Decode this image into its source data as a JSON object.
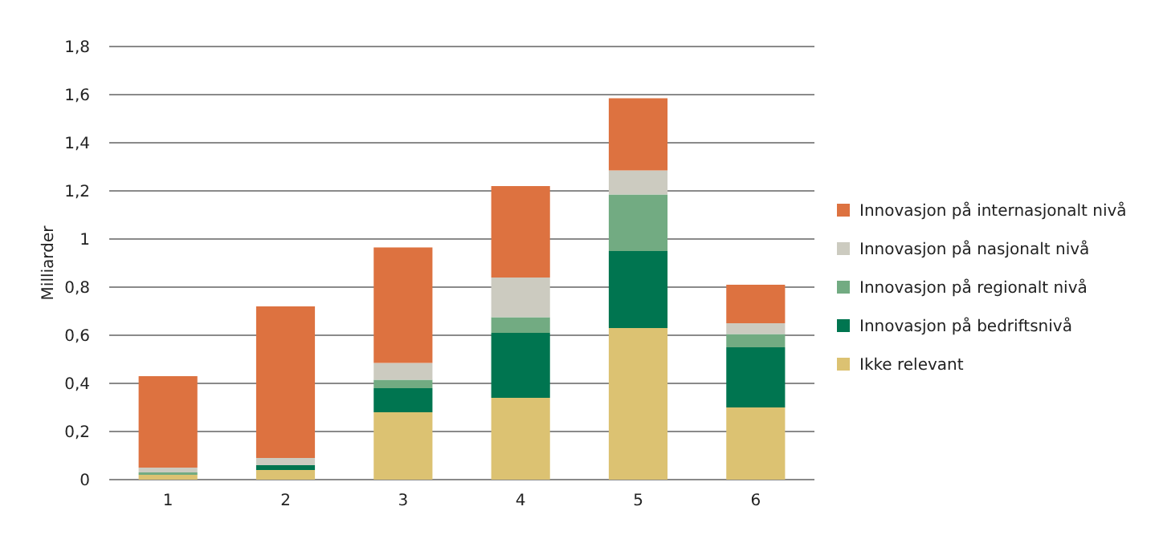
{
  "chart_data": {
    "type": "bar",
    "stacked": true,
    "ylabel": "Milliarder",
    "categories": [
      "1",
      "2",
      "3",
      "4",
      "5",
      "6"
    ],
    "series": [
      {
        "name": "Ikke relevant",
        "color": "#dcc272",
        "values": [
          0.02,
          0.04,
          0.28,
          0.34,
          0.63,
          0.3
        ]
      },
      {
        "name": "Innovasjon på bedriftsnivå",
        "color": "#007550",
        "values": [
          0,
          0.02,
          0.1,
          0.27,
          0.32,
          0.25
        ]
      },
      {
        "name": "Innovasjon på regionalt nivå",
        "color": "#72ab82",
        "values": [
          0.01,
          0,
          0.035,
          0.065,
          0.235,
          0.055
        ]
      },
      {
        "name": "Innovasjon på nasjonalt nivå",
        "color": "#cccbc0",
        "values": [
          0.02,
          0.03,
          0.07,
          0.165,
          0.1,
          0.045
        ]
      },
      {
        "name": "Innovasjon på internasjonalt nivå",
        "color": "#dd7240",
        "values": [
          0.38,
          0.63,
          0.48,
          0.38,
          0.3,
          0.16
        ]
      }
    ],
    "ylim": [
      0,
      1.8
    ],
    "yticks": [
      {
        "value": 0,
        "label": "0"
      },
      {
        "value": 0.2,
        "label": "0,2"
      },
      {
        "value": 0.4,
        "label": "0,4"
      },
      {
        "value": 0.6,
        "label": "0,6"
      },
      {
        "value": 0.8,
        "label": "0,8"
      },
      {
        "value": 1,
        "label": "1"
      },
      {
        "value": 1.2,
        "label": "1,2"
      },
      {
        "value": 1.4,
        "label": "1,4"
      },
      {
        "value": 1.6,
        "label": "1,6"
      },
      {
        "value": 1.8,
        "label": "1,8"
      }
    ],
    "grid": "y",
    "legend": "right"
  }
}
